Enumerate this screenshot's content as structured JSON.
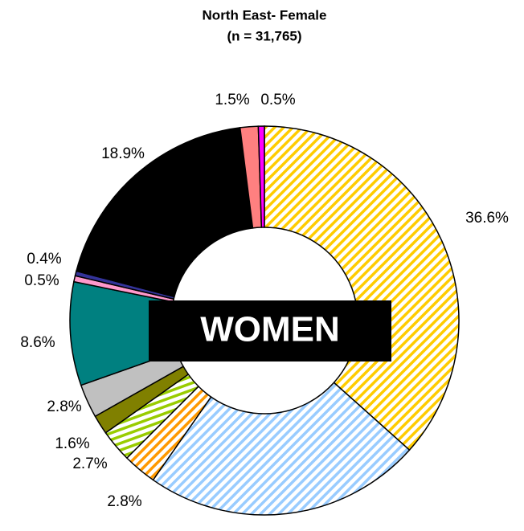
{
  "chart_data": {
    "type": "donut",
    "title": "North East- Female",
    "subtitle": "(n = 31,765)",
    "annotation": "WOMEN",
    "values": [
      36.6,
      23.1,
      2.8,
      2.7,
      1.6,
      2.8,
      8.6,
      0.5,
      0.4,
      18.9,
      1.5,
      0.5
    ],
    "value_labels": [
      "36.6%",
      null,
      "2.8%",
      "2.7%",
      "1.6%",
      "2.8%",
      "8.6%",
      "0.5%",
      "0.4%",
      "18.9%",
      "1.5%",
      "0.5%"
    ],
    "colors": [
      "#ffcc00",
      "#99ccff",
      "#ff9900",
      "#99cc00",
      "#808000",
      "#c0c0c0",
      "#008080",
      "#ff99cc",
      "#333399",
      "#000000",
      "#ff8080",
      "#ff00ff"
    ],
    "hatched": [
      true,
      true,
      true,
      true,
      false,
      false,
      false,
      false,
      false,
      false,
      false,
      false
    ]
  }
}
